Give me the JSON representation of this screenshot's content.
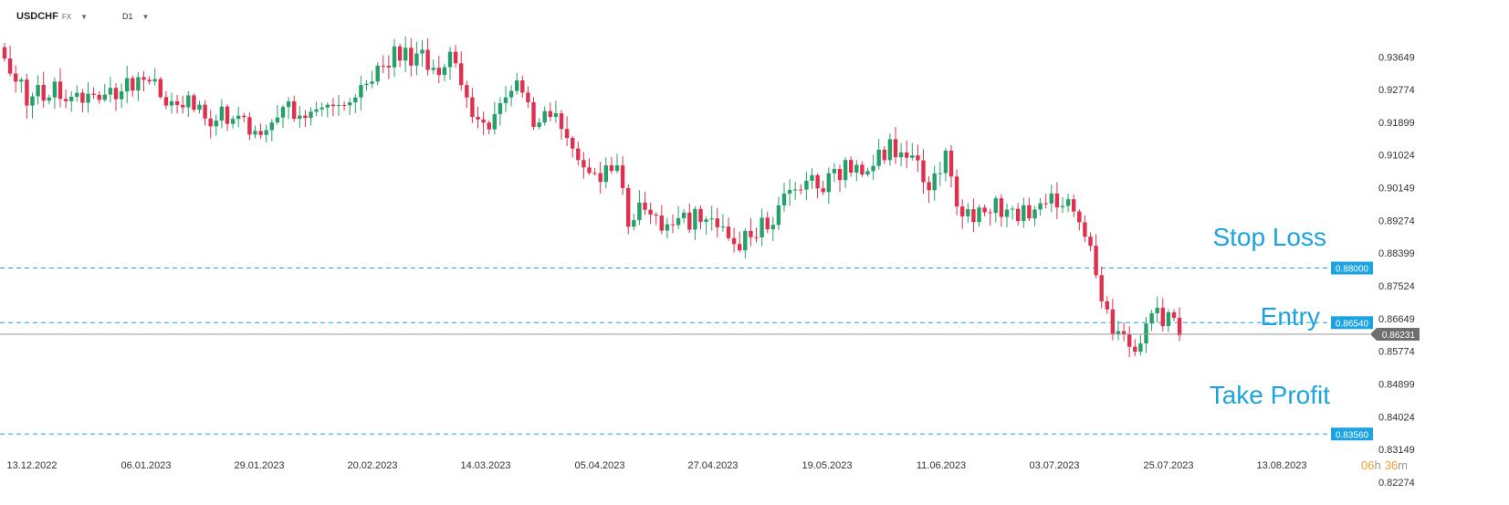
{
  "header": {
    "symbol": "USDCHF",
    "exchange": "FX",
    "timeframe": "D1"
  },
  "colors": {
    "up": "#26a06b",
    "down": "#e0304e",
    "level_line": "#1ca3e0",
    "badge": "#1ca3e0",
    "price_line": "#9a9a9a",
    "price_badge": "#6f6f6f",
    "countdown": "#f0a030"
  },
  "countdown": {
    "hours": "06",
    "h": "h",
    "minutes": "36",
    "m": "m"
  },
  "chart_data": {
    "type": "candlestick",
    "symbol": "USDCHF",
    "timeframe": "D1",
    "ylim": [
      0.8215,
      0.9434
    ],
    "y_ticks": [
      0.93649,
      0.92774,
      0.91899,
      0.91024,
      0.90149,
      0.89274,
      0.88399,
      0.87524,
      0.86649,
      0.85774,
      0.84899,
      0.84024,
      0.83149,
      0.82274
    ],
    "y_tick_labels": [
      "0.93649",
      "0.92774",
      "0.91899",
      "0.91024",
      "0.90149",
      "0.89274",
      "0.88399",
      "0.87524",
      "0.86649",
      "0.85774",
      "0.84899",
      "0.84024",
      "0.83149",
      "0.82274"
    ],
    "x_tick_labels": [
      "13.12.2022",
      "06.01.2023",
      "29.01.2023",
      "20.02.2023",
      "14.03.2023",
      "05.04.2023",
      "27.04.2023",
      "19.05.2023",
      "11.06.2023",
      "03.07.2023",
      "25.07.2023",
      "13.08.2023"
    ],
    "anchors": [
      [
        0,
        0.935
      ],
      [
        4,
        0.925
      ],
      [
        8,
        0.928
      ],
      [
        12,
        0.925
      ],
      [
        16,
        0.927
      ],
      [
        20,
        0.925
      ],
      [
        24,
        0.932
      ],
      [
        28,
        0.927
      ],
      [
        33,
        0.924
      ],
      [
        38,
        0.92
      ],
      [
        42,
        0.921
      ],
      [
        46,
        0.914
      ],
      [
        50,
        0.922
      ],
      [
        54,
        0.922
      ],
      [
        58,
        0.925
      ],
      [
        62,
        0.924
      ],
      [
        66,
        0.93
      ],
      [
        70,
        0.937
      ],
      [
        74,
        0.937
      ],
      [
        78,
        0.931
      ],
      [
        80,
        0.938
      ],
      [
        83,
        0.925
      ],
      [
        86,
        0.916
      ],
      [
        89,
        0.924
      ],
      [
        92,
        0.931
      ],
      [
        95,
        0.92
      ],
      [
        99,
        0.92
      ],
      [
        103,
        0.91
      ],
      [
        106,
        0.904
      ],
      [
        110,
        0.909
      ],
      [
        112,
        0.893
      ],
      [
        115,
        0.898
      ],
      [
        119,
        0.891
      ],
      [
        123,
        0.893
      ],
      [
        127,
        0.895
      ],
      [
        131,
        0.887
      ],
      [
        135,
        0.889
      ],
      [
        139,
        0.896
      ],
      [
        143,
        0.903
      ],
      [
        147,
        0.902
      ],
      [
        151,
        0.907
      ],
      [
        155,
        0.906
      ],
      [
        159,
        0.912
      ],
      [
        163,
        0.91
      ],
      [
        166,
        0.901
      ],
      [
        169,
        0.909
      ],
      [
        172,
        0.893
      ],
      [
        176,
        0.896
      ],
      [
        180,
        0.896
      ],
      [
        184,
        0.894
      ],
      [
        188,
        0.897
      ],
      [
        191,
        0.899
      ],
      [
        193,
        0.893
      ],
      [
        196,
        0.88
      ],
      [
        199,
        0.862
      ],
      [
        202,
        0.86
      ],
      [
        204,
        0.859
      ],
      [
        206,
        0.867
      ],
      [
        208,
        0.866
      ],
      [
        210,
        0.868
      ],
      [
        211,
        0.862
      ]
    ],
    "levels": [
      {
        "name": "Stop Loss",
        "price": 0.88,
        "label": "0.88000"
      },
      {
        "name": "Entry",
        "price": 0.8654,
        "label": "0.86540"
      },
      {
        "name": "Take Profit",
        "price": 0.8356,
        "label": "0.83560"
      }
    ],
    "current_price": {
      "price": 0.86231,
      "label": "0.86231"
    }
  }
}
